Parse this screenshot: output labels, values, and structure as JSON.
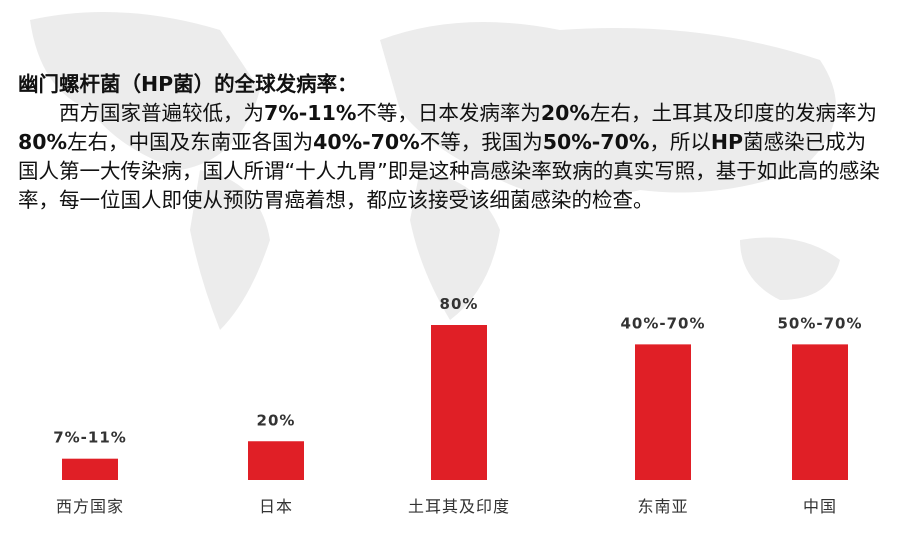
{
  "text": {
    "heading": "幽门螺杆菌（HP菌）的全球发病率：",
    "paragraph": [
      {
        "text": "西方国家普遍较低，为"
      },
      {
        "text": "7%-11%",
        "bold": true
      },
      {
        "text": "不等，日本发病率为"
      },
      {
        "text": "20%",
        "bold": true
      },
      {
        "text": "左右，土耳其及印度的发病率为"
      },
      {
        "text": "80%",
        "bold": true
      },
      {
        "text": "左右，中国及东南亚各国为"
      },
      {
        "text": "40%-70%",
        "bold": true
      },
      {
        "text": "不等，我国为"
      },
      {
        "text": "50%-70%",
        "bold": true
      },
      {
        "text": "，所以"
      },
      {
        "text": "HP",
        "bold": true
      },
      {
        "text": "菌感染已成为国人第一大传染病，国人所谓“十人九胃”即是这种高感染率致病的真实写照，基于如此高的感染率，每一位国人即使从预防胃癌着想，都应该接受该细菌感染的检查。"
      }
    ]
  },
  "chart_data": {
    "type": "bar",
    "categories": [
      "西方国家",
      "日本",
      "土耳其及印度",
      "东南亚",
      "中国"
    ],
    "values": [
      11,
      20,
      80,
      70,
      70
    ],
    "value_labels": [
      "7%-11%",
      "20%",
      "80%",
      "40%-70%",
      "50%-70%"
    ],
    "color": "#e01f26"
  }
}
